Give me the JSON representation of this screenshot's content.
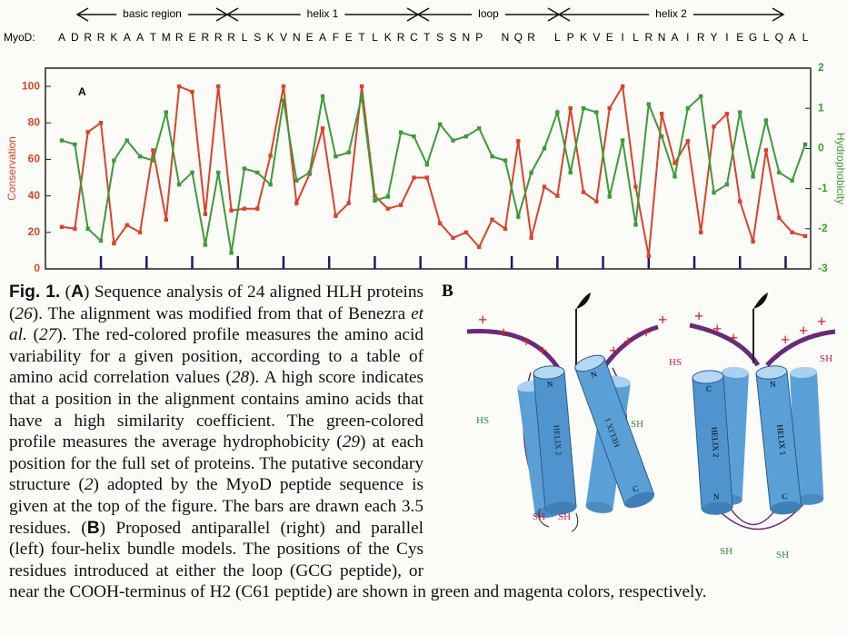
{
  "chart_data": {
    "type": "line",
    "regions": [
      "basic region",
      "helix 1",
      "loop",
      "helix 2"
    ],
    "sequence_label": "MyoD:",
    "categories": [
      "A",
      "D",
      "R",
      "R",
      "K",
      "A",
      "A",
      "T",
      "M",
      "R",
      "E",
      "R",
      "R",
      "R",
      "L",
      "S",
      "K",
      "V",
      "N",
      "E",
      "A",
      "F",
      "E",
      "T",
      "L",
      "K",
      "R",
      "C",
      "T",
      "S",
      "S",
      "N",
      "P",
      null,
      "N",
      "Q",
      "R",
      null,
      "L",
      "P",
      "K",
      "V",
      "E",
      "I",
      "L",
      "R",
      "N",
      "A",
      "I",
      "R",
      "Y",
      "I",
      "E",
      "G",
      "L",
      "Q",
      "A",
      "L"
    ],
    "panel_label": "A",
    "ylabel": "Conservation",
    "y2label": "Hydrophobicity",
    "ylim": [
      0,
      110
    ],
    "yticks": [
      0,
      20,
      40,
      60,
      80,
      100
    ],
    "y2lim": [
      -3,
      2
    ],
    "y2ticks": [
      2,
      1,
      0,
      -1,
      -2,
      -3
    ],
    "series": [
      {
        "name": "Conservation",
        "color": "#d9432b",
        "values": [
          23,
          22,
          75,
          80,
          14,
          24,
          20,
          65,
          27,
          100,
          97,
          30,
          100,
          32,
          33,
          33,
          62,
          100,
          36,
          52,
          77,
          29,
          36,
          100,
          40,
          33,
          35,
          50,
          50,
          25,
          17,
          20,
          12,
          27,
          22,
          70,
          17,
          45,
          40,
          88,
          42,
          37,
          88,
          100,
          45,
          7,
          85,
          58,
          70,
          20,
          78,
          85,
          37,
          15,
          65,
          28,
          20,
          18
        ]
      },
      {
        "name": "Hydrophobicity",
        "color": "#3d9a3a",
        "axis": "y2",
        "values": [
          0.2,
          0.1,
          -2.0,
          -2.3,
          -0.3,
          0.2,
          -0.2,
          -0.3,
          0.9,
          -0.9,
          -0.6,
          -2.4,
          -0.6,
          -2.6,
          -0.5,
          -0.6,
          -0.9,
          1.2,
          -0.8,
          -0.6,
          1.3,
          -0.2,
          -0.1,
          1.3,
          -1.3,
          -1.2,
          0.4,
          0.3,
          -0.4,
          0.6,
          0.2,
          0.3,
          0.5,
          -0.2,
          -0.3,
          -1.7,
          -0.6,
          0.0,
          0.9,
          -0.6,
          1.0,
          0.9,
          -1.2,
          0.2,
          -1.9,
          1.1,
          0.3,
          -0.7,
          1.0,
          1.3,
          -1.1,
          -0.9,
          0.9,
          -0.7,
          0.7,
          -0.6,
          -0.8,
          0.1
        ]
      }
    ]
  },
  "caption": {
    "segments": [
      {
        "text": "Fig. 1.",
        "style": "bold"
      },
      {
        "text": " (",
        "style": "normal"
      },
      {
        "text": "A",
        "style": "bold"
      },
      {
        "text": ") Sequence analysis of 24 aligned HLH proteins (",
        "style": "normal"
      },
      {
        "text": "26",
        "style": "italic"
      },
      {
        "text": "). The alignment was modified from that of Benezra ",
        "style": "normal"
      },
      {
        "text": "et al.",
        "style": "italic"
      },
      {
        "text": " (",
        "style": "normal"
      },
      {
        "text": "27",
        "style": "italic"
      },
      {
        "text": "). The red-colored profile measures the amino acid variability for a given position, according to a table of amino acid correlation values (",
        "style": "normal"
      },
      {
        "text": "28",
        "style": "italic"
      },
      {
        "text": "). A high score indicates that a position in the alignment contains amino acids that have a high similarity coefficient. The green-colored profile measures the average hydrophobicity (",
        "style": "normal"
      },
      {
        "text": "29",
        "style": "italic"
      },
      {
        "text": ") at each position for the full set of proteins. The putative secondary structure (",
        "style": "normal"
      },
      {
        "text": "2",
        "style": "italic"
      },
      {
        "text": ") adopted by the MyoD peptide sequence is given at the top of the figure. The bars are drawn each 3.5 residues. (",
        "style": "normal"
      },
      {
        "text": "B",
        "style": "bold"
      },
      {
        "text": ") Proposed antiparallel (right) and parallel (left) four-helix bundle models. The positions of the Cys residues introduced at either the loop (GCG peptide), or near the COOH-terminus of H2 (C61 peptide) are shown in green and magenta colors, respectively.",
        "style": "normal"
      }
    ]
  },
  "panel_b": {
    "label": "B",
    "plus": "+",
    "hs": "HS",
    "sh": "SH",
    "n": "N",
    "c": "C",
    "helix1": "HELIX 1",
    "helix2": "HELIX 2"
  }
}
